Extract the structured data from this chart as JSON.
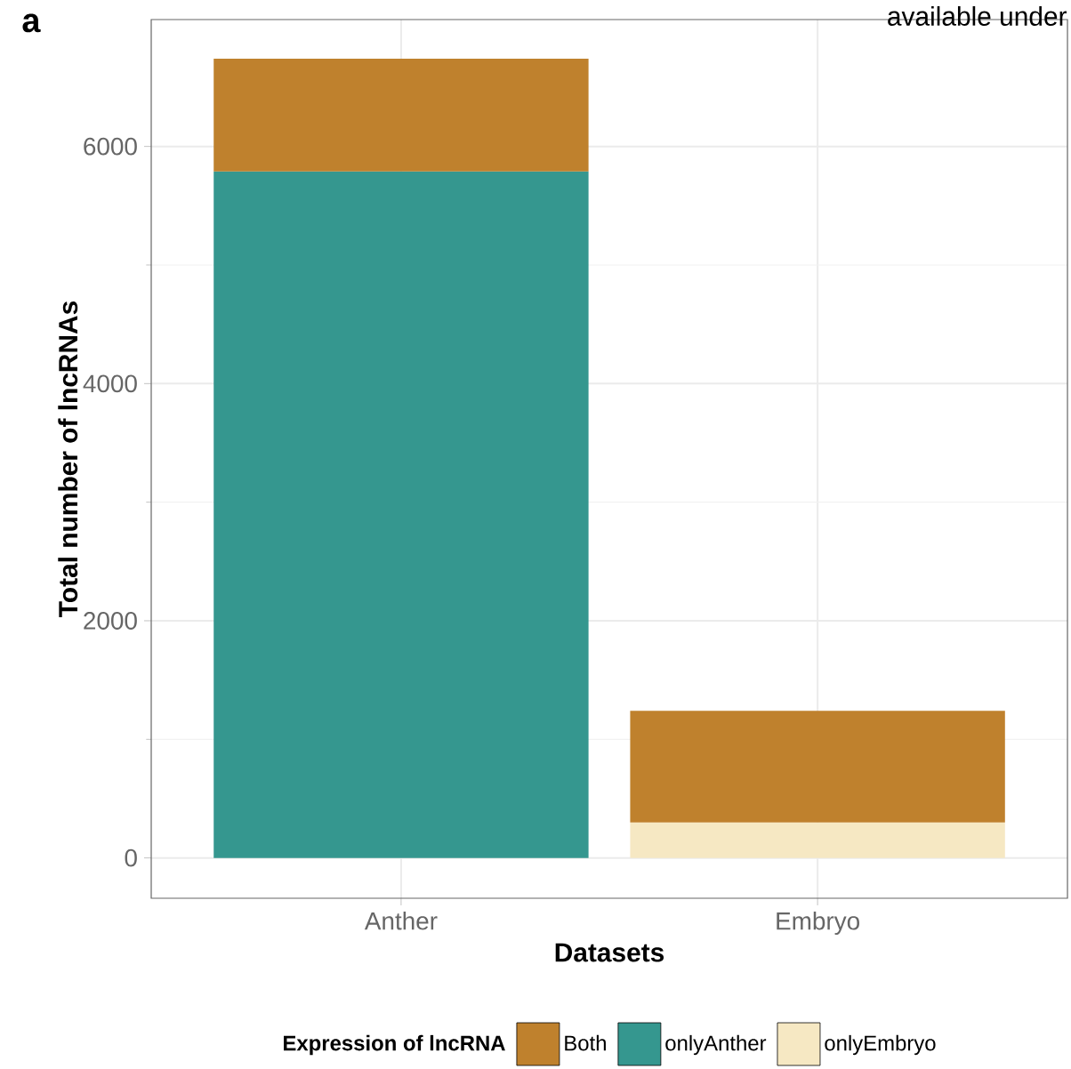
{
  "chart_data": {
    "type": "bar",
    "stacked": true,
    "xlabel": "Datasets",
    "ylabel": "Total number of lncRNAs",
    "legend_title": "Expression of lncRNA",
    "legend": "bottom",
    "grid": true,
    "annotations": [
      "a",
      "available under"
    ],
    "categories": [
      "Anther",
      "Embryo"
    ],
    "ylim": [
      -340,
      7070
    ],
    "yticks": [
      0,
      2000,
      4000,
      6000
    ],
    "series": [
      {
        "name": "onlyAnther",
        "color": "#35978f",
        "values": [
          5790,
          null
        ]
      },
      {
        "name": "onlyEmbryo",
        "color": "#f6e8c3",
        "values": [
          null,
          300
        ]
      },
      {
        "name": "Both",
        "color": "#bf812d",
        "values": [
          950,
          940
        ]
      }
    ]
  }
}
